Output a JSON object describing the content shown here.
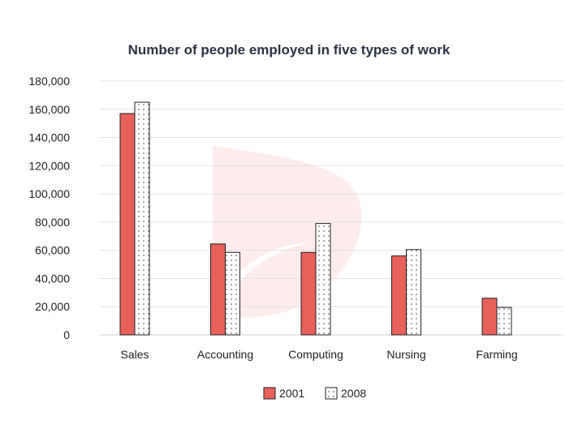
{
  "chart_data": {
    "type": "bar",
    "title": "Number of people employed in five types of work",
    "categories": [
      "Sales",
      "Accounting",
      "Computing",
      "Nursing",
      "Farming"
    ],
    "series": [
      {
        "name": "2001",
        "values": [
          157000,
          64500,
          58500,
          56000,
          26000
        ],
        "color": "#e8605a",
        "pattern": "solid"
      },
      {
        "name": "2008",
        "values": [
          165000,
          58500,
          79000,
          60500,
          19500
        ],
        "color": "#ffffff",
        "pattern": "dotted"
      }
    ],
    "y_ticks": [
      "0",
      "20,000",
      "40,000",
      "60,000",
      "80,000",
      "100,000",
      "120,000",
      "140,000",
      "160,000",
      "180,000"
    ],
    "ylim": [
      0,
      180000
    ],
    "xlabel": "",
    "ylabel": "",
    "grid": true,
    "legend_position": "bottom-center"
  }
}
